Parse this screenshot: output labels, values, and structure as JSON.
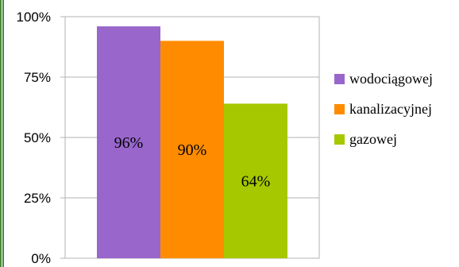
{
  "chart_data": {
    "type": "bar",
    "title": "",
    "xlabel": "",
    "ylabel": "",
    "categories": [
      "wodociągowej",
      "kanalizacyjnej",
      "gazowej"
    ],
    "series": [
      {
        "values": [
          96,
          90,
          64
        ]
      }
    ],
    "data_labels": [
      "96%",
      "90%",
      "64%"
    ],
    "y_ticks": [
      "0%",
      "25%",
      "50%",
      "75%",
      "100%"
    ],
    "ylim": [
      0,
      100
    ],
    "grid": true,
    "legend": {
      "placement": "right",
      "entries": [
        "wodociągowej",
        "kanalizacyjnej",
        "gazowej"
      ]
    },
    "colors": [
      "#9966cc",
      "#ff8c00",
      "#a6c800"
    ],
    "frame_color": "#4a8a3a"
  }
}
